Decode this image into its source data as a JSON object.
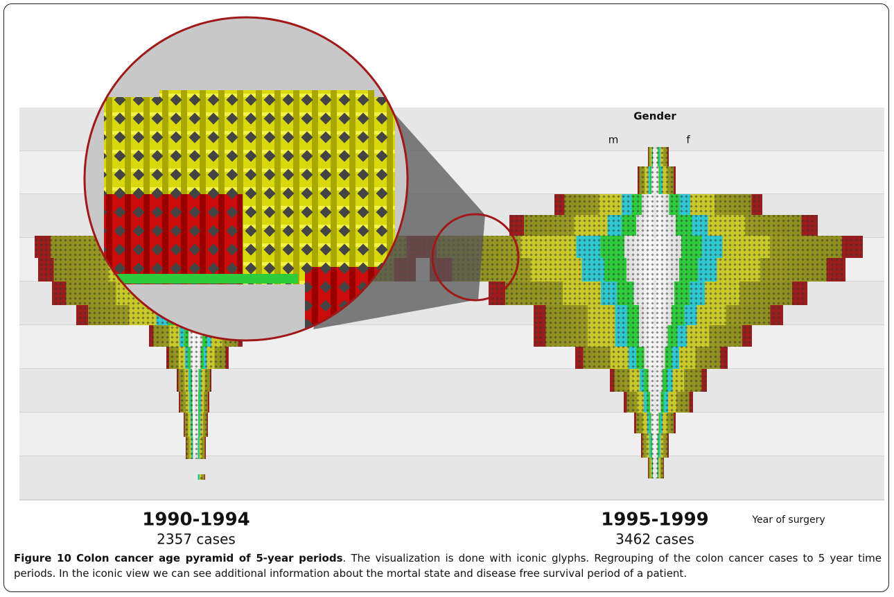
{
  "figure": {
    "legend_title": "Gender",
    "legend_left": "m",
    "legend_right": "f",
    "panels": [
      {
        "period": "1990-1994",
        "cases": "2357 cases"
      },
      {
        "period": "1995-1999",
        "cases": "3462 cases"
      }
    ],
    "axis_label": "Year of surgery"
  },
  "caption": {
    "label": "Figure 10",
    "title": "Colon cancer age pyramid of 5-year periods",
    "text": ". The visualization is done with iconic glyphs. Regrouping of the colon cancer cases to 5 year time periods. In the iconic view we can see additional information about the mortal state and disease free survival period of a patient."
  }
}
